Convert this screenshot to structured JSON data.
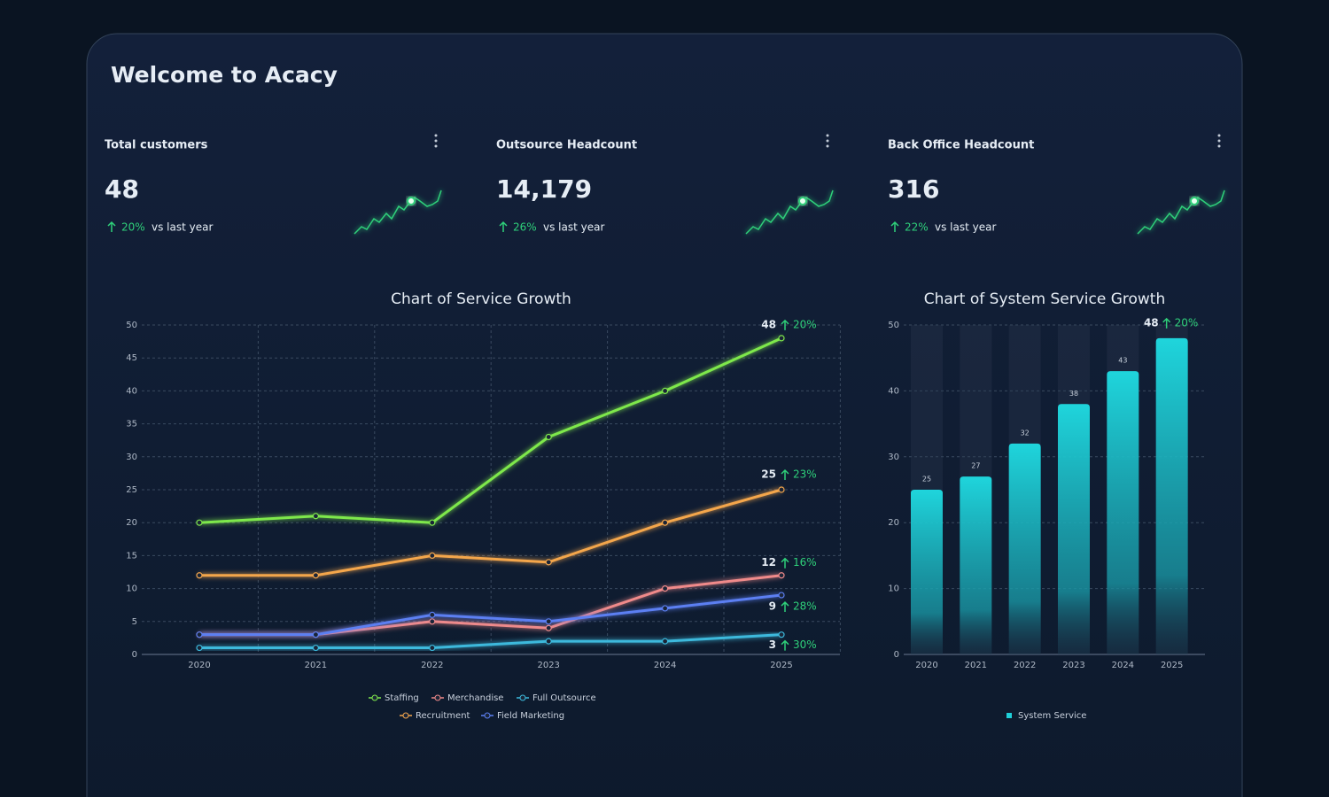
{
  "title": "Welcome to Acacy",
  "cards": [
    {
      "title": "Total customers",
      "value": "48",
      "change": "20%",
      "note": "vs last year"
    },
    {
      "title": "Outsource Headcount",
      "value": "14,179",
      "change": "26%",
      "note": "vs last year"
    },
    {
      "title": "Back Office Headcount",
      "value": "316",
      "change": "22%",
      "note": "vs last year"
    }
  ],
  "chart_data": [
    {
      "type": "line",
      "title": "Chart of Service Growth",
      "categories": [
        "2020",
        "2021",
        "2022",
        "2023",
        "2024",
        "2025"
      ],
      "ylim": [
        0,
        50
      ],
      "yticks": [
        0,
        5,
        10,
        15,
        20,
        25,
        30,
        35,
        40,
        45,
        50
      ],
      "grid": true,
      "series": [
        {
          "name": "Staffing",
          "color": "#7ee84c",
          "values": [
            20,
            21,
            20,
            33,
            40,
            48
          ],
          "growth": "20%"
        },
        {
          "name": "Merchandise",
          "color": "#f08a8a",
          "values": [
            3,
            3,
            5,
            4,
            10,
            12
          ],
          "growth": "16%"
        },
        {
          "name": "Full Outsource",
          "color": "#3cb9dc",
          "values": [
            1,
            1,
            1,
            2,
            2,
            3
          ],
          "growth": "30%"
        },
        {
          "name": "Recruitment",
          "color": "#f4a64c",
          "values": [
            12,
            12,
            15,
            14,
            20,
            25
          ],
          "growth": "23%"
        },
        {
          "name": "Field Marketing",
          "color": "#5b7ff2",
          "values": [
            3,
            3,
            6,
            5,
            7,
            9
          ],
          "growth": "28%"
        }
      ]
    },
    {
      "type": "bar",
      "title": "Chart of System Service Growth",
      "categories": [
        "2020",
        "2021",
        "2022",
        "2023",
        "2024",
        "2025"
      ],
      "ylim": [
        0,
        50
      ],
      "yticks": [
        0,
        10,
        20,
        30,
        40,
        50
      ],
      "grid": true,
      "series": [
        {
          "name": "System Service",
          "color": "#1fcfd8",
          "values": [
            25,
            27,
            32,
            38,
            43,
            48
          ],
          "growth": "20%"
        }
      ]
    }
  ]
}
